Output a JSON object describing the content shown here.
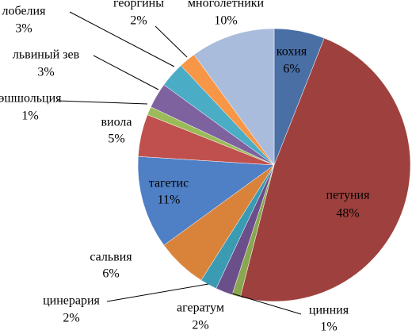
{
  "chart_data": {
    "type": "pie",
    "categories": [
      "кохия",
      "петуния",
      "цинния",
      "агератум",
      "цинерария",
      "сальвия",
      "тагетис",
      "виола",
      "эшшольция",
      "львиный зев",
      "лобелия",
      "георгины",
      "многолетники"
    ],
    "values": [
      6,
      48,
      1,
      2,
      2,
      6,
      11,
      5,
      1,
      3,
      3,
      2,
      10
    ],
    "value_labels": [
      "6%",
      "48%",
      "1%",
      "2%",
      "2%",
      "6%",
      "11%",
      "5%",
      "1%",
      "3%",
      "3%",
      "2%",
      "10%"
    ],
    "colors": [
      "#4a6fa5",
      "#9e413e",
      "#8aa650",
      "#6b4f8a",
      "#3b9bb3",
      "#d9833a",
      "#4f7fc4",
      "#c0504d",
      "#9bbb59",
      "#7e62a0",
      "#4bacc6",
      "#f79646",
      "#a9bcdc"
    ]
  }
}
